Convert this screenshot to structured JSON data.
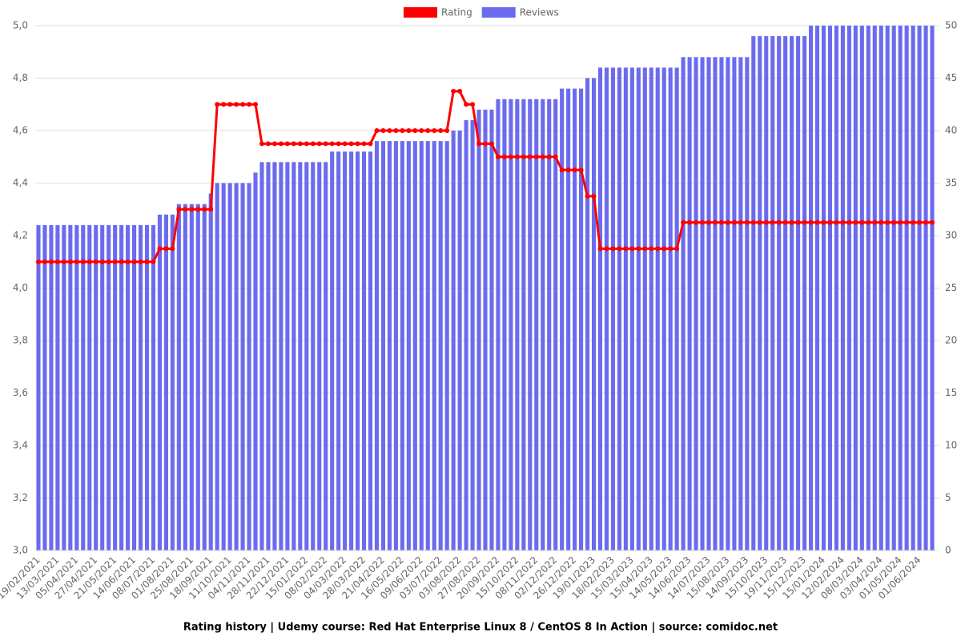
{
  "chart_data": {
    "type": "combo",
    "title": "Rating history | Udemy course: Red Hat Enterprise Linux 8 / CentOS 8 In Action | source: comidoc.net",
    "categories": [
      "19/02/2021",
      null,
      null,
      "13/03/2021",
      null,
      null,
      "05/04/2021",
      null,
      null,
      "27/04/2021",
      null,
      null,
      "21/05/2021",
      null,
      null,
      "14/06/2021",
      null,
      null,
      "08/07/2021",
      null,
      null,
      "01/08/2021",
      null,
      null,
      "25/08/2021",
      null,
      null,
      "18/09/2021",
      null,
      null,
      "11/10/2021",
      null,
      null,
      "04/11/2021",
      null,
      null,
      "28/11/2021",
      null,
      null,
      "22/12/2021",
      null,
      null,
      "15/01/2022",
      null,
      null,
      "08/02/2022",
      null,
      null,
      "04/03/2022",
      null,
      null,
      "28/03/2022",
      null,
      null,
      "21/04/2022",
      null,
      null,
      "16/05/2022",
      null,
      null,
      "09/06/2022",
      null,
      null,
      "03/07/2022",
      null,
      null,
      "03/08/2022",
      null,
      null,
      "27/08/2022",
      null,
      null,
      "20/09/2022",
      null,
      null,
      "15/10/2022",
      null,
      null,
      "08/11/2022",
      null,
      null,
      "02/12/2022",
      null,
      null,
      "26/12/2022",
      null,
      null,
      "19/01/2023",
      null,
      null,
      "18/02/2023",
      null,
      null,
      "15/03/2023",
      null,
      null,
      "15/04/2023",
      null,
      null,
      "14/05/2023",
      null,
      null,
      "14/06/2023",
      null,
      null,
      "14/07/2023",
      null,
      null,
      "15/08/2023",
      null,
      null,
      "14/09/2023",
      null,
      null,
      "15/10/2023",
      null,
      null,
      "19/11/2023",
      null,
      null,
      "15/12/2023",
      null,
      null,
      "15/01/2024",
      null,
      null,
      "12/02/2024",
      null,
      null,
      "08/03/2024",
      null,
      null,
      "03/04/2024",
      null,
      null,
      "01/05/2024",
      null,
      null,
      "01/06/2024",
      null,
      null
    ],
    "series": [
      {
        "name": "Rating",
        "type": "line",
        "color": "#ff0000",
        "values": [
          4.1,
          4.1,
          4.1,
          4.1,
          4.1,
          4.1,
          4.1,
          4.1,
          4.1,
          4.1,
          4.1,
          4.1,
          4.1,
          4.1,
          4.1,
          4.1,
          4.1,
          4.1,
          4.1,
          4.15,
          4.15,
          4.15,
          4.3,
          4.3,
          4.3,
          4.3,
          4.3,
          4.3,
          4.7,
          4.7,
          4.7,
          4.7,
          4.7,
          4.7,
          4.7,
          4.55,
          4.55,
          4.55,
          4.55,
          4.55,
          4.55,
          4.55,
          4.55,
          4.55,
          4.55,
          4.55,
          4.55,
          4.55,
          4.55,
          4.55,
          4.55,
          4.55,
          4.55,
          4.6,
          4.6,
          4.6,
          4.6,
          4.6,
          4.6,
          4.6,
          4.6,
          4.6,
          4.6,
          4.6,
          4.6,
          4.75,
          4.75,
          4.7,
          4.7,
          4.55,
          4.55,
          4.55,
          4.5,
          4.5,
          4.5,
          4.5,
          4.5,
          4.5,
          4.5,
          4.5,
          4.5,
          4.5,
          4.45,
          4.45,
          4.45,
          4.45,
          4.35,
          4.35,
          4.15,
          4.15,
          4.15,
          4.15,
          4.15,
          4.15,
          4.15,
          4.15,
          4.15,
          4.15,
          4.15,
          4.15,
          4.15,
          4.25,
          4.25,
          4.25,
          4.25,
          4.25,
          4.25,
          4.25,
          4.25,
          4.25,
          4.25,
          4.25,
          4.25,
          4.25,
          4.25,
          4.25,
          4.25,
          4.25,
          4.25,
          4.25,
          4.25,
          4.25,
          4.25,
          4.25,
          4.25,
          4.25,
          4.25,
          4.25,
          4.25,
          4.25,
          4.25,
          4.25,
          4.25,
          4.25,
          4.25,
          4.25,
          4.25,
          4.25,
          4.25,
          4.25,
          4.25
        ]
      },
      {
        "name": "Reviews",
        "type": "bar",
        "axis": "y2",
        "color": "#6b6bef",
        "values": [
          31,
          31,
          31,
          31,
          31,
          31,
          31,
          31,
          31,
          31,
          31,
          31,
          31,
          31,
          31,
          31,
          31,
          31,
          31,
          32,
          32,
          32,
          33,
          33,
          33,
          33,
          33,
          34,
          35,
          35,
          35,
          35,
          35,
          35,
          36,
          37,
          37,
          37,
          37,
          37,
          37,
          37,
          37,
          37,
          37,
          37,
          38,
          38,
          38,
          38,
          38,
          38,
          38,
          39,
          39,
          39,
          39,
          39,
          39,
          39,
          39,
          39,
          39,
          39,
          39,
          40,
          40,
          41,
          41,
          42,
          42,
          42,
          43,
          43,
          43,
          43,
          43,
          43,
          43,
          43,
          43,
          43,
          44,
          44,
          44,
          44,
          45,
          45,
          46,
          46,
          46,
          46,
          46,
          46,
          46,
          46,
          46,
          46,
          46,
          46,
          46,
          47,
          47,
          47,
          47,
          47,
          47,
          47,
          47,
          47,
          47,
          47,
          49,
          49,
          49,
          49,
          49,
          49,
          49,
          49,
          49,
          50,
          50,
          50,
          50,
          50,
          50,
          50,
          50,
          50,
          50,
          50,
          50,
          50,
          50,
          50,
          50,
          50,
          50,
          50,
          50
        ]
      }
    ],
    "ylim": [
      3.0,
      5.0
    ],
    "yticks": [
      {
        "value": 3.0,
        "label": "3,0"
      },
      {
        "value": 3.2,
        "label": "3,2"
      },
      {
        "value": 3.4,
        "label": "3,4"
      },
      {
        "value": 3.6,
        "label": "3,6"
      },
      {
        "value": 3.8,
        "label": "3,8"
      },
      {
        "value": 4.0,
        "label": "4,0"
      },
      {
        "value": 4.2,
        "label": "4,2"
      },
      {
        "value": 4.4,
        "label": "4,4"
      },
      {
        "value": 4.6,
        "label": "4,6"
      },
      {
        "value": 4.8,
        "label": "4,8"
      },
      {
        "value": 5.0,
        "label": "5,0"
      }
    ],
    "y2lim": [
      0,
      50
    ],
    "y2ticks": [
      0,
      5,
      10,
      15,
      20,
      25,
      30,
      35,
      40,
      45,
      50
    ],
    "grid": true,
    "legend": "top"
  }
}
